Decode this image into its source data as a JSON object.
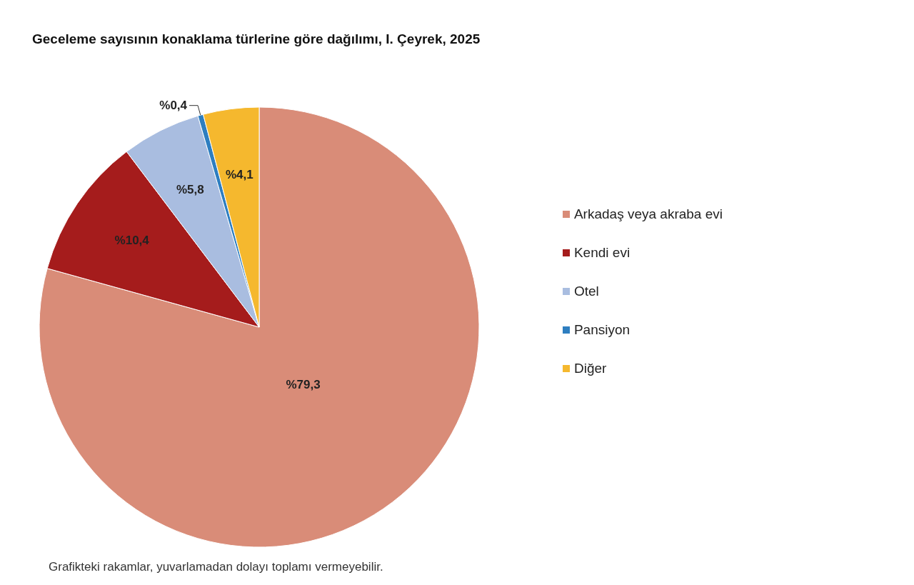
{
  "chart_data": {
    "type": "pie",
    "title": "Geceleme sayısının konaklama türlerine göre dağılımı, I. Çeyrek, 2025",
    "categories": [
      "Arkadaş veya akraba evi",
      "Kendi evi",
      "Otel",
      "Pansiyon",
      "Diğer"
    ],
    "values": [
      79.3,
      10.4,
      5.8,
      0.4,
      4.1
    ],
    "colors": [
      "#d98c78",
      "#a51c1c",
      "#a9bde0",
      "#2e7ec0",
      "#f5b82e"
    ],
    "value_labels": [
      "%79,3",
      "%10,4",
      "%5,8",
      "%0,4",
      "%4,1"
    ],
    "legend": "right",
    "annotations": [
      "Grafikteki rakamlar, yuvarlamadan dolayı toplamı vermeyebilir."
    ]
  }
}
